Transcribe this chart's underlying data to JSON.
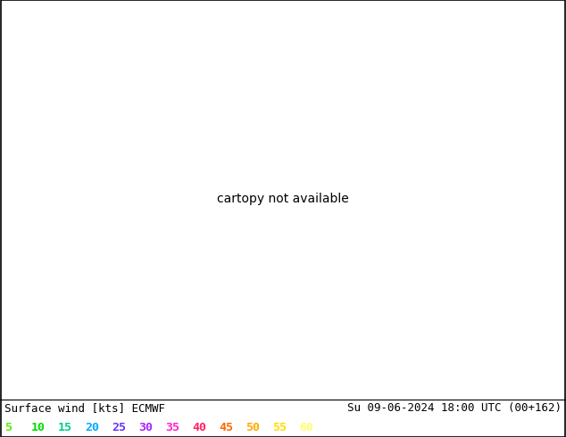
{
  "title_left": "Surface wind [kts] ECMWF",
  "title_right": "Su 09-06-2024 18:00 UTC (00+162)",
  "legend_values": [
    5,
    10,
    15,
    20,
    25,
    30,
    35,
    40,
    45,
    50,
    55,
    60
  ],
  "legend_colors_hex": [
    "#55ee00",
    "#00dd00",
    "#00ccaa",
    "#00aaff",
    "#6644ff",
    "#aa44ff",
    "#ff44cc",
    "#ff4477",
    "#ff6600",
    "#ffaa00",
    "#ffee00",
    "#ffff88"
  ],
  "wind_cmap_colors": [
    "#33cc00",
    "#88dd00",
    "#ccee00",
    "#eeff00",
    "#ffff00",
    "#ffee00",
    "#ffcc00",
    "#ffaa00",
    "#ff8800",
    "#ff6600",
    "#ff3300",
    "#cc0000"
  ],
  "wind_levels": [
    0,
    5,
    10,
    15,
    20,
    25,
    30,
    35,
    40,
    45,
    50,
    55,
    60
  ],
  "background_color": "#ffffff",
  "ocean_color": "#aaddee",
  "font_size_title": 9,
  "font_size_legend": 9.5,
  "figsize": [
    6.34,
    4.9
  ],
  "dpi": 100,
  "map_extent": [
    -125,
    -66,
    23,
    50
  ],
  "map_extent_full": [
    -128,
    -63,
    21,
    52
  ]
}
